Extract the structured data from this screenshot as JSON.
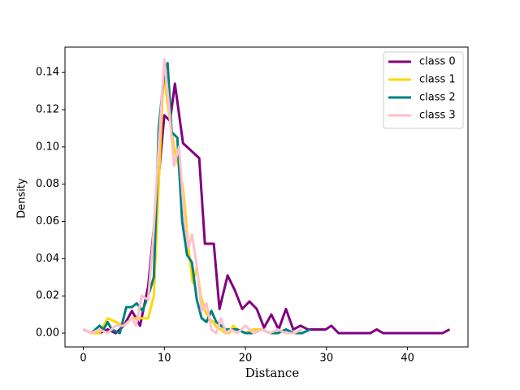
{
  "chart_data": {
    "type": "line",
    "xlabel": "Distance",
    "ylabel": "Density",
    "xlim": [
      -2.26,
      47.46
    ],
    "ylim": [
      -0.0074,
      0.1536
    ],
    "xticks": [
      0,
      10,
      20,
      30,
      40
    ],
    "yticks": [
      {
        "value": 0,
        "label": "0.00"
      },
      {
        "value": 0.02,
        "label": "0.02"
      },
      {
        "value": 0.04,
        "label": "0.04"
      },
      {
        "value": 0.06,
        "label": "0.06"
      },
      {
        "value": 0.08,
        "label": "0.08"
      },
      {
        "value": 0.1,
        "label": "0.10"
      },
      {
        "value": 0.12,
        "label": "0.12"
      },
      {
        "value": 0.14,
        "label": "0.14"
      }
    ],
    "legend": "upper right",
    "series": [
      {
        "name": "class 0",
        "color": "#800080",
        "x": [
          0,
          1,
          2,
          3,
          4,
          5,
          6,
          7,
          8,
          9,
          10,
          10.7,
          11.3,
          12.3,
          14.3,
          15,
          16.1,
          16.8,
          17.8,
          18.7,
          19.6,
          20.5,
          21.4,
          22.3,
          23.2,
          24.1,
          25,
          25.9,
          26.8,
          27.7,
          28.6,
          29.9,
          30.6,
          31.5,
          35.4,
          36.2,
          37,
          44.3,
          45.2
        ],
        "values": [
          0.002,
          0,
          0,
          0.002,
          0,
          0.004,
          0.012,
          0.004,
          0.025,
          0.07,
          0.117,
          0.114,
          0.134,
          0.102,
          0.094,
          0.048,
          0.048,
          0.013,
          0.031,
          0.023,
          0.013,
          0.017,
          0.013,
          0.003,
          0.01,
          0.002,
          0.013,
          0.002,
          0.004,
          0.002,
          0.002,
          0.002,
          0.004,
          0,
          0,
          0.002,
          0,
          0,
          0.002
        ]
      },
      {
        "name": "class 1",
        "color": "#ffd700",
        "x": [
          0,
          1,
          2,
          3,
          4,
          5,
          6,
          7,
          8,
          8.7,
          9.4,
          9.9,
          10.5,
          11.2,
          12,
          12.3,
          13,
          13.5,
          14,
          14.5,
          15,
          15.5,
          16,
          16.5,
          17,
          17.5,
          18,
          18.5,
          19,
          20,
          21,
          22,
          23,
          24,
          25,
          26,
          27
        ],
        "values": [
          0.002,
          0,
          0,
          0.008,
          0.006,
          0.004,
          0.008,
          0.008,
          0.008,
          0.02,
          0.09,
          0.14,
          0.12,
          0.1,
          0.085,
          0.078,
          0.045,
          0.027,
          0.035,
          0.02,
          0.012,
          0.008,
          0.006,
          0.003,
          0.002,
          0,
          0,
          0.004,
          0.002,
          0,
          0.002,
          0.002,
          0,
          0,
          0.002,
          0,
          0
        ]
      },
      {
        "name": "class 2",
        "color": "#008080",
        "x": [
          0,
          1,
          2,
          2.5,
          3,
          3.5,
          4.5,
          5.3,
          6,
          6.6,
          7.3,
          8,
          8.7,
          9.3,
          10,
          10.4,
          10.9,
          11.6,
          12.2,
          12.8,
          13.4,
          14,
          14.6,
          15.2,
          15.8,
          16.4,
          17,
          17.6,
          18.2,
          19,
          20,
          21,
          22,
          23,
          24,
          25,
          26,
          27,
          28
        ],
        "values": [
          0.002,
          0,
          0.004,
          0.002,
          0.006,
          0.002,
          0,
          0.014,
          0.014,
          0.016,
          0.012,
          0.02,
          0.03,
          0.11,
          0.14,
          0.145,
          0.108,
          0.105,
          0.06,
          0.042,
          0.038,
          0.018,
          0.008,
          0.006,
          0.012,
          0.006,
          0.004,
          0.002,
          0.002,
          0.002,
          0,
          0,
          0.002,
          0,
          0,
          0.002,
          0,
          0,
          0.002
        ]
      },
      {
        "name": "class 3",
        "color": "#ffc0cb",
        "x": [
          0,
          1,
          2,
          3,
          4,
          5,
          6,
          6.5,
          7.2,
          8,
          8.6,
          9.3,
          10,
          10.5,
          11.2,
          11.8,
          12.5,
          13,
          13.4,
          14,
          14.6,
          15.2,
          15.8,
          16.4,
          17,
          17.6,
          18.2,
          19,
          20,
          21,
          22,
          23,
          24,
          25,
          26,
          27
        ],
        "values": [
          0.002,
          0,
          0.002,
          0,
          0.004,
          0.004,
          0.008,
          0.004,
          0.02,
          0.018,
          0.05,
          0.1,
          0.147,
          0.125,
          0.09,
          0.1,
          0.06,
          0.046,
          0.053,
          0.036,
          0.012,
          0.016,
          0.002,
          0,
          0.008,
          0,
          0.002,
          0,
          0.004,
          0,
          0.002,
          0,
          0.002,
          0,
          0,
          0.002
        ]
      }
    ]
  }
}
